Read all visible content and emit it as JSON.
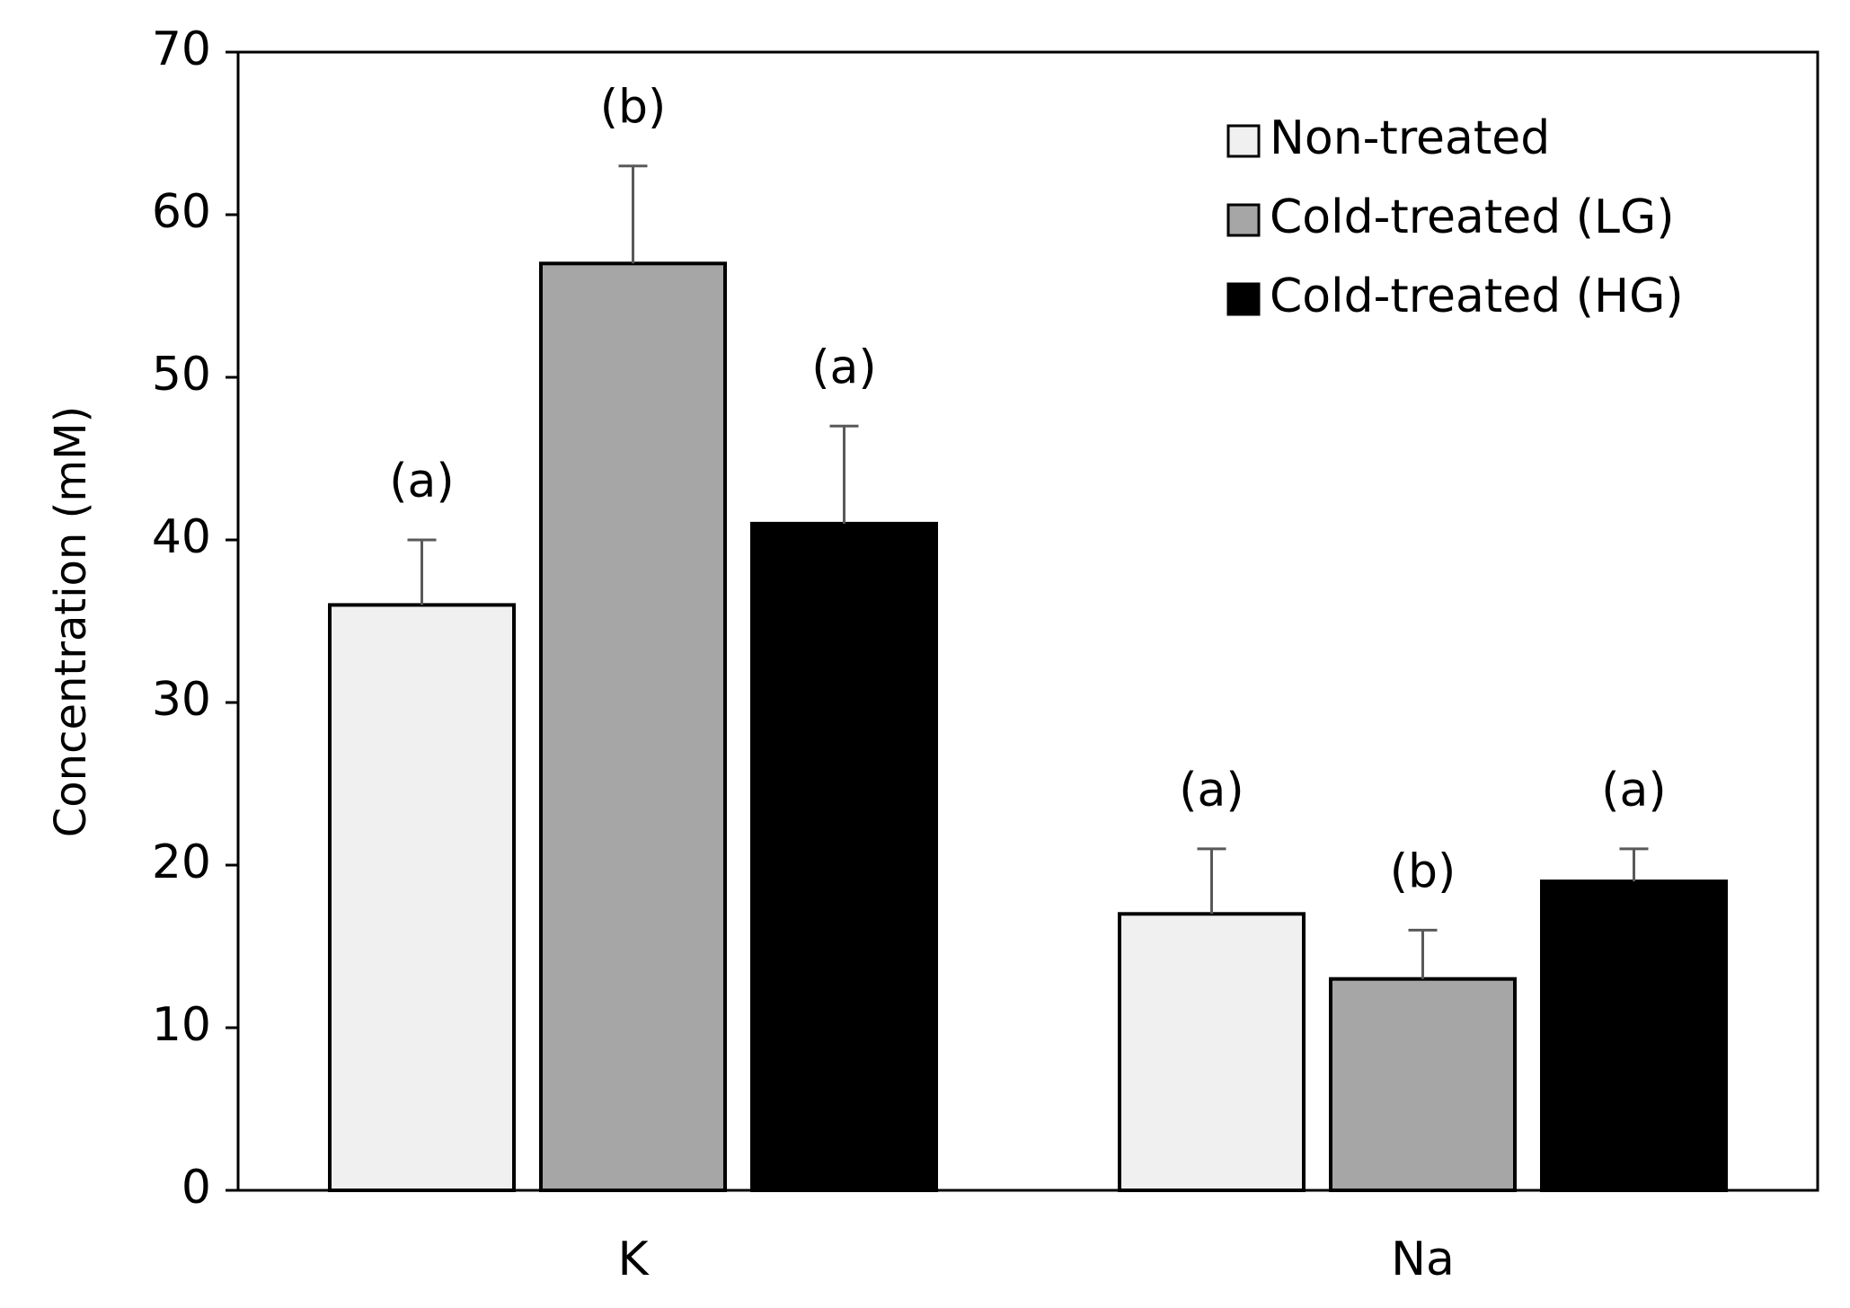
{
  "chart_data": {
    "type": "bar",
    "title": "",
    "xlabel": "",
    "ylabel": "Concentration (mM)",
    "ylim": [
      0,
      70
    ],
    "yticks": [
      0,
      10,
      20,
      30,
      40,
      50,
      60,
      70
    ],
    "grid": false,
    "legend_position": "top-right",
    "categories": [
      "K",
      "Na"
    ],
    "series": [
      {
        "name": "Non-treated",
        "color": "#f0f0f0",
        "values": [
          36,
          17
        ],
        "errors": [
          4,
          4
        ],
        "significance": [
          "(a)",
          "(a)"
        ]
      },
      {
        "name": "Cold-treated (LG)",
        "color": "#a6a6a6",
        "values": [
          57,
          13
        ],
        "errors": [
          6,
          3
        ],
        "significance": [
          "(b)",
          "(b)"
        ]
      },
      {
        "name": "Cold-treated (HG)",
        "color": "#000000",
        "values": [
          41,
          19
        ],
        "errors": [
          6,
          2
        ],
        "significance": [
          "(a)",
          "(a)"
        ]
      }
    ]
  }
}
